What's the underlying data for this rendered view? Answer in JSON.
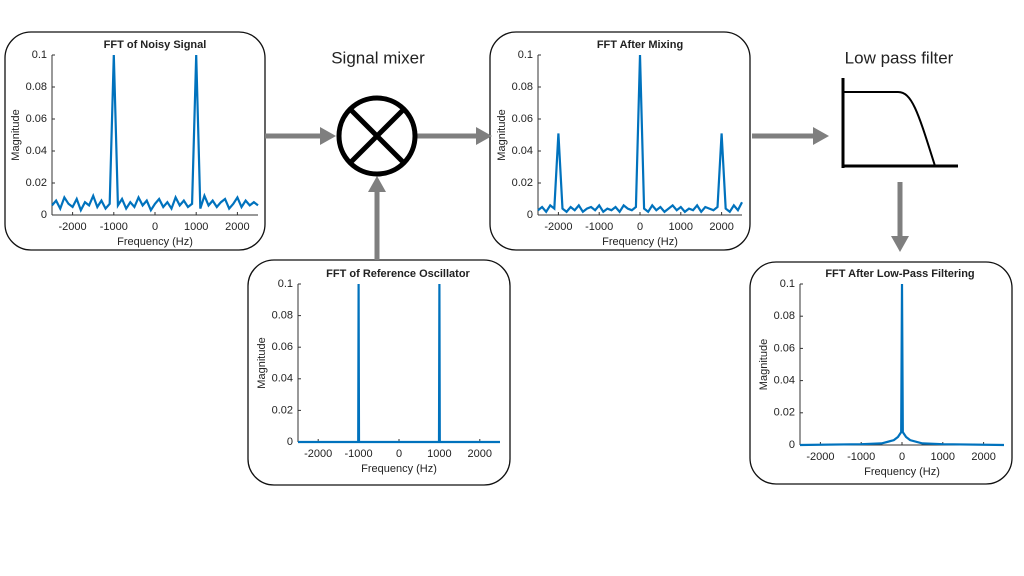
{
  "labels": [
    "Signal mixer",
    "Low pass filter"
  ],
  "chart_data": [
    {
      "type": "line",
      "title": "FFT of Noisy Signal",
      "x_label": "Frequency (Hz)",
      "y_label": "Magnitude",
      "color": "#0072bd",
      "xlim": [
        -2500,
        2500
      ],
      "ylim": [
        0,
        0.1
      ],
      "xticks": [
        -2000,
        -1000,
        0,
        1000,
        2000
      ],
      "yticks": [
        0,
        0.02,
        0.04,
        0.06,
        0.08,
        0.1
      ],
      "x": [
        -2500,
        -2400,
        -2300,
        -2200,
        -2100,
        -2000,
        -1900,
        -1800,
        -1700,
        -1600,
        -1500,
        -1400,
        -1300,
        -1200,
        -1100,
        -1000,
        -900,
        -800,
        -700,
        -600,
        -500,
        -400,
        -300,
        -200,
        -100,
        0,
        100,
        200,
        300,
        400,
        500,
        600,
        700,
        800,
        900,
        1000,
        1100,
        1200,
        1300,
        1400,
        1500,
        1600,
        1700,
        1800,
        1900,
        2000,
        2100,
        2200,
        2300,
        2400,
        2500
      ],
      "values": [
        0.006,
        0.009,
        0.004,
        0.011,
        0.007,
        0.005,
        0.01,
        0.003,
        0.008,
        0.006,
        0.012,
        0.005,
        0.009,
        0.004,
        0.007,
        0.1,
        0.006,
        0.01,
        0.004,
        0.008,
        0.005,
        0.011,
        0.006,
        0.009,
        0.003,
        0.007,
        0.01,
        0.005,
        0.008,
        0.004,
        0.011,
        0.006,
        0.009,
        0.005,
        0.007,
        0.1,
        0.004,
        0.012,
        0.006,
        0.009,
        0.005,
        0.008,
        0.01,
        0.004,
        0.007,
        0.011,
        0.005,
        0.009,
        0.006,
        0.008,
        0.006
      ]
    },
    {
      "type": "line",
      "title": "FFT After Mixing",
      "x_label": "Frequency (Hz)",
      "y_label": "Magnitude",
      "color": "#0072bd",
      "xlim": [
        -2500,
        2500
      ],
      "ylim": [
        0,
        0.1
      ],
      "xticks": [
        -2000,
        -1000,
        0,
        1000,
        2000
      ],
      "yticks": [
        0,
        0.02,
        0.04,
        0.06,
        0.08,
        0.1
      ],
      "x": [
        -2500,
        -2400,
        -2300,
        -2200,
        -2100,
        -2000,
        -1900,
        -1800,
        -1700,
        -1600,
        -1500,
        -1400,
        -1300,
        -1200,
        -1100,
        -1000,
        -900,
        -800,
        -700,
        -600,
        -500,
        -400,
        -300,
        -200,
        -100,
        0,
        100,
        200,
        300,
        400,
        500,
        600,
        700,
        800,
        900,
        1000,
        1100,
        1200,
        1300,
        1400,
        1500,
        1600,
        1700,
        1800,
        1900,
        2000,
        2100,
        2200,
        2300,
        2400,
        2500
      ],
      "values": [
        0.003,
        0.005,
        0.002,
        0.006,
        0.004,
        0.051,
        0.004,
        0.002,
        0.005,
        0.003,
        0.006,
        0.002,
        0.004,
        0.005,
        0.003,
        0.006,
        0.002,
        0.004,
        0.003,
        0.005,
        0.002,
        0.006,
        0.004,
        0.003,
        0.005,
        0.1,
        0.004,
        0.002,
        0.006,
        0.003,
        0.005,
        0.002,
        0.004,
        0.006,
        0.003,
        0.005,
        0.002,
        0.004,
        0.003,
        0.006,
        0.002,
        0.005,
        0.004,
        0.003,
        0.005,
        0.051,
        0.004,
        0.002,
        0.006,
        0.003,
        0.008
      ]
    },
    {
      "type": "line",
      "title": "FFT of Reference Oscillator",
      "x_label": "Frequency (Hz)",
      "y_label": "Magnitude",
      "color": "#0072bd",
      "xlim": [
        -2500,
        2500
      ],
      "ylim": [
        0,
        0.1
      ],
      "xticks": [
        -2000,
        -1000,
        0,
        1000,
        2000
      ],
      "yticks": [
        0,
        0.02,
        0.04,
        0.06,
        0.08,
        0.1
      ],
      "x": [
        -2500,
        -1010,
        -1000,
        -990,
        990,
        1000,
        1010,
        2500
      ],
      "values": [
        0,
        0,
        0.1,
        0,
        0,
        0.1,
        0,
        0
      ]
    },
    {
      "type": "line",
      "title": "FFT After Low-Pass Filtering",
      "x_label": "Frequency (Hz)",
      "y_label": "Magnitude",
      "color": "#0072bd",
      "xlim": [
        -2500,
        2500
      ],
      "ylim": [
        0,
        0.1
      ],
      "xticks": [
        -2000,
        -1000,
        0,
        1000,
        2000
      ],
      "yticks": [
        0,
        0.02,
        0.04,
        0.06,
        0.08,
        0.1
      ],
      "x": [
        -2500,
        -1000,
        -500,
        -200,
        -100,
        -20,
        0,
        20,
        100,
        200,
        500,
        1000,
        2500
      ],
      "values": [
        0,
        0.0005,
        0.001,
        0.003,
        0.005,
        0.008,
        0.1,
        0.008,
        0.005,
        0.003,
        0.001,
        0.0005,
        0
      ]
    }
  ]
}
